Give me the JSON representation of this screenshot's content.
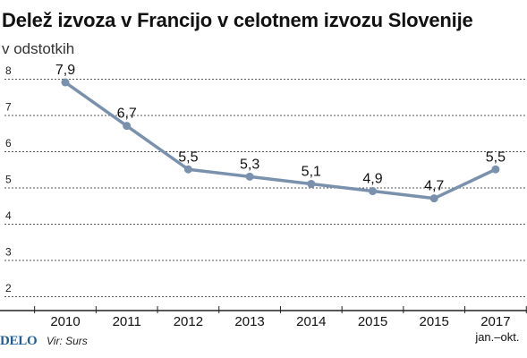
{
  "title": "Delež izvoza v Francijo v celotnem izvozu Slovenije",
  "subtitle": "v odstotkih",
  "footer": {
    "brand": "DELO",
    "source": "Vir: Surs"
  },
  "colors": {
    "line": "#7a91ad",
    "grid": "#555555",
    "brand": "#1f5d99",
    "axis": "#222222"
  },
  "chart_data": {
    "type": "line",
    "title": "Delež izvoza v Francijo v celotnem izvozu Slovenije",
    "subtitle": "v odstotkih",
    "categories": [
      "2010",
      "2011",
      "2012",
      "2013",
      "2014",
      "2015",
      "2015",
      "2017"
    ],
    "category_sublabels": [
      "",
      "",
      "",
      "",
      "",
      "",
      "",
      "jan.–okt."
    ],
    "values": [
      7.9,
      6.7,
      5.5,
      5.3,
      5.1,
      4.9,
      4.7,
      5.5
    ],
    "value_labels": [
      "7,9",
      "6,7",
      "5,5",
      "5,3",
      "5,1",
      "4,9",
      "4,7",
      "5,5"
    ],
    "yticks": [
      "2",
      "3",
      "4",
      "5",
      "6",
      "7",
      "8"
    ],
    "ylim": [
      1.8,
      8.4
    ],
    "grid": "horizontal dashed",
    "legend": "none"
  }
}
